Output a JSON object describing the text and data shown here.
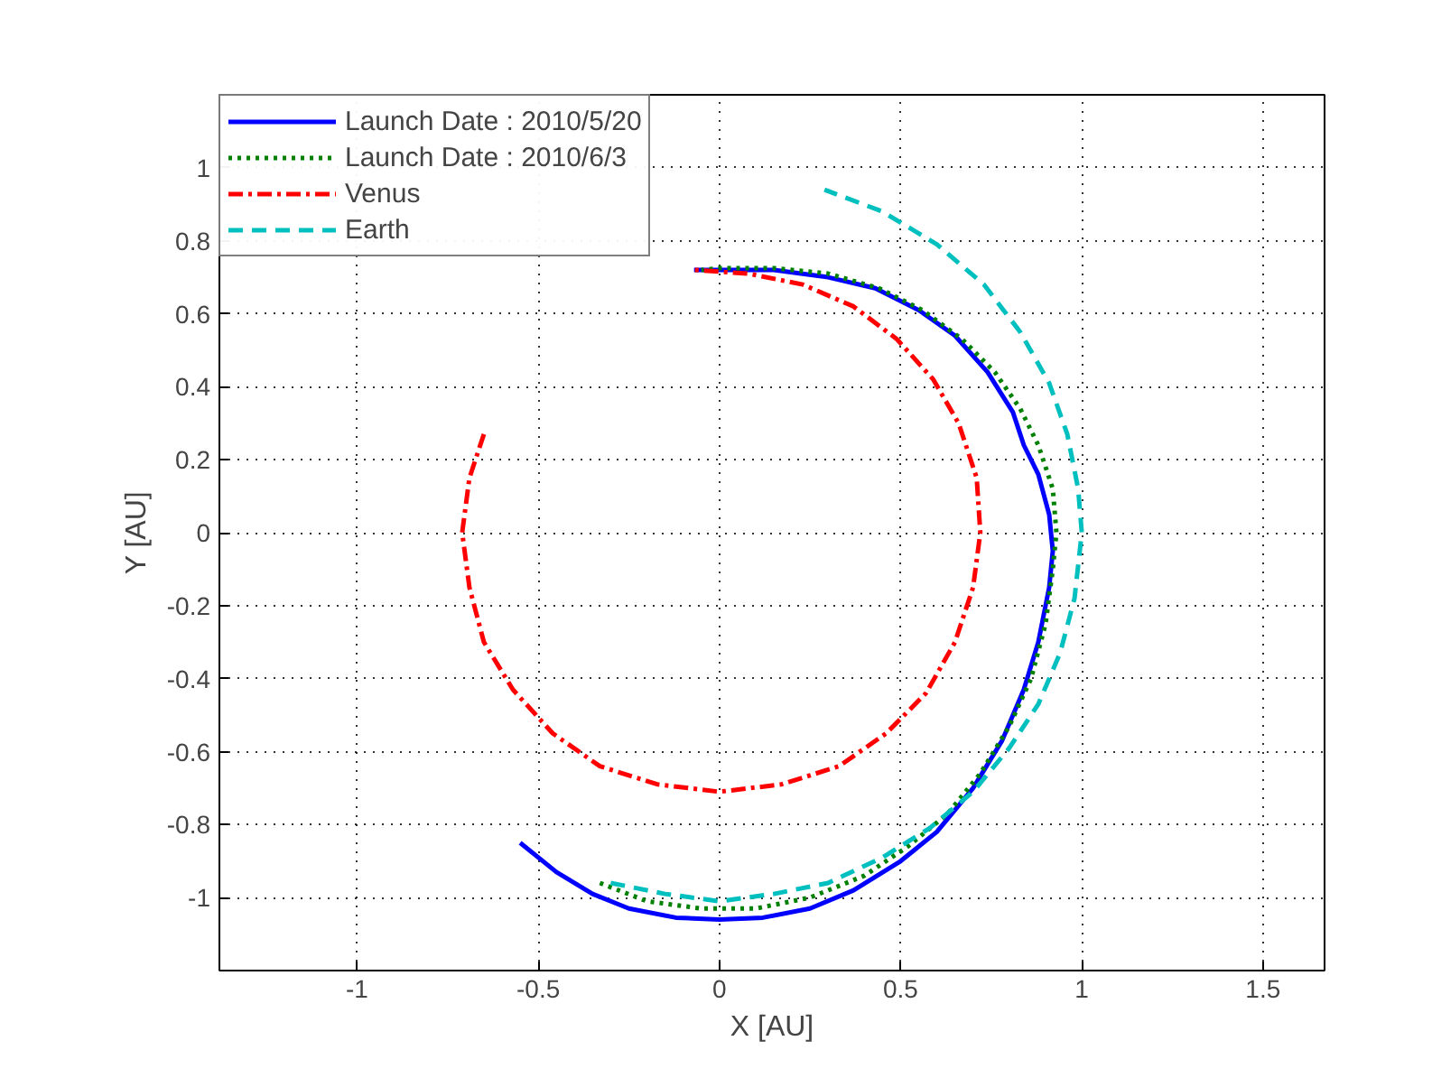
{
  "chart_data": {
    "type": "line",
    "xlabel": "X [AU]",
    "ylabel": "Y [AU]",
    "xlim": [
      -1.38,
      1.67
    ],
    "ylim": [
      -1.2,
      1.2
    ],
    "xticks": [
      -1,
      -0.5,
      0,
      0.5,
      1,
      1.5
    ],
    "yticks": [
      -1,
      -0.8,
      -0.6,
      -0.4,
      -0.2,
      0,
      0.2,
      0.4,
      0.6,
      0.8,
      1
    ],
    "grid": true,
    "legend": "top left",
    "series": [
      {
        "name": "Launch Date : 2010/5/20",
        "color": "#0000ff",
        "line_style": "solid",
        "x": [
          -0.55,
          -0.45,
          -0.35,
          -0.25,
          -0.12,
          0,
          0.12,
          0.25,
          0.37,
          0.5,
          0.6,
          0.7,
          0.78,
          0.84,
          0.88,
          0.91,
          0.92,
          0.91,
          0.88,
          0.84,
          0.81,
          0.74,
          0.65,
          0.55,
          0.43,
          0.3,
          0.15,
          0,
          -0.07
        ],
        "values": [
          -0.85,
          -0.93,
          -0.99,
          -1.03,
          -1.055,
          -1.06,
          -1.055,
          -1.03,
          -0.98,
          -0.9,
          -0.82,
          -0.7,
          -0.57,
          -0.43,
          -0.3,
          -0.15,
          -0.05,
          0.05,
          0.16,
          0.24,
          0.33,
          0.44,
          0.54,
          0.61,
          0.67,
          0.7,
          0.72,
          0.72,
          0.72
        ]
      },
      {
        "name": "Launch Date : 2010/6/3",
        "color": "#008000",
        "line_style": "dotted",
        "x": [
          -0.33,
          -0.2,
          -0.05,
          0.1,
          0.25,
          0.4,
          0.52,
          0.63,
          0.72,
          0.8,
          0.86,
          0.9,
          0.92,
          0.93,
          0.92,
          0.88,
          0.83,
          0.76,
          0.67,
          0.56,
          0.44,
          0.3,
          0.15,
          0,
          -0.05
        ],
        "values": [
          -0.96,
          -1.01,
          -1.03,
          -1.03,
          -1.0,
          -0.94,
          -0.86,
          -0.77,
          -0.66,
          -0.53,
          -0.4,
          -0.25,
          -0.1,
          0,
          0.12,
          0.24,
          0.34,
          0.44,
          0.53,
          0.61,
          0.67,
          0.71,
          0.725,
          0.725,
          0.72
        ]
      },
      {
        "name": "Venus",
        "color": "#ff0000",
        "line_style": "dashdot",
        "x": [
          -0.65,
          -0.69,
          -0.71,
          -0.69,
          -0.65,
          -0.57,
          -0.46,
          -0.33,
          -0.17,
          0,
          0.17,
          0.33,
          0.46,
          0.57,
          0.65,
          0.7,
          0.72,
          0.71,
          0.66,
          0.59,
          0.49,
          0.37,
          0.23,
          0.08,
          -0.07
        ],
        "values": [
          0.27,
          0.15,
          0,
          -0.15,
          -0.3,
          -0.43,
          -0.55,
          -0.64,
          -0.69,
          -0.71,
          -0.69,
          -0.64,
          -0.55,
          -0.44,
          -0.3,
          -0.15,
          0,
          0.15,
          0.3,
          0.42,
          0.53,
          0.62,
          0.68,
          0.71,
          0.72
        ]
      },
      {
        "name": "Earth",
        "color": "#00bfbf",
        "line_style": "dashed",
        "x": [
          -0.3,
          -0.15,
          0,
          0.15,
          0.3,
          0.45,
          0.58,
          0.7,
          0.8,
          0.88,
          0.94,
          0.98,
          1.0,
          0.99,
          0.96,
          0.91,
          0.83,
          0.73,
          0.6,
          0.45,
          0.29
        ],
        "values": [
          -0.96,
          -0.99,
          -1.01,
          -0.99,
          -0.96,
          -0.89,
          -0.81,
          -0.71,
          -0.59,
          -0.47,
          -0.33,
          -0.18,
          0,
          0.12,
          0.27,
          0.41,
          0.55,
          0.68,
          0.79,
          0.88,
          0.94
        ]
      }
    ]
  }
}
